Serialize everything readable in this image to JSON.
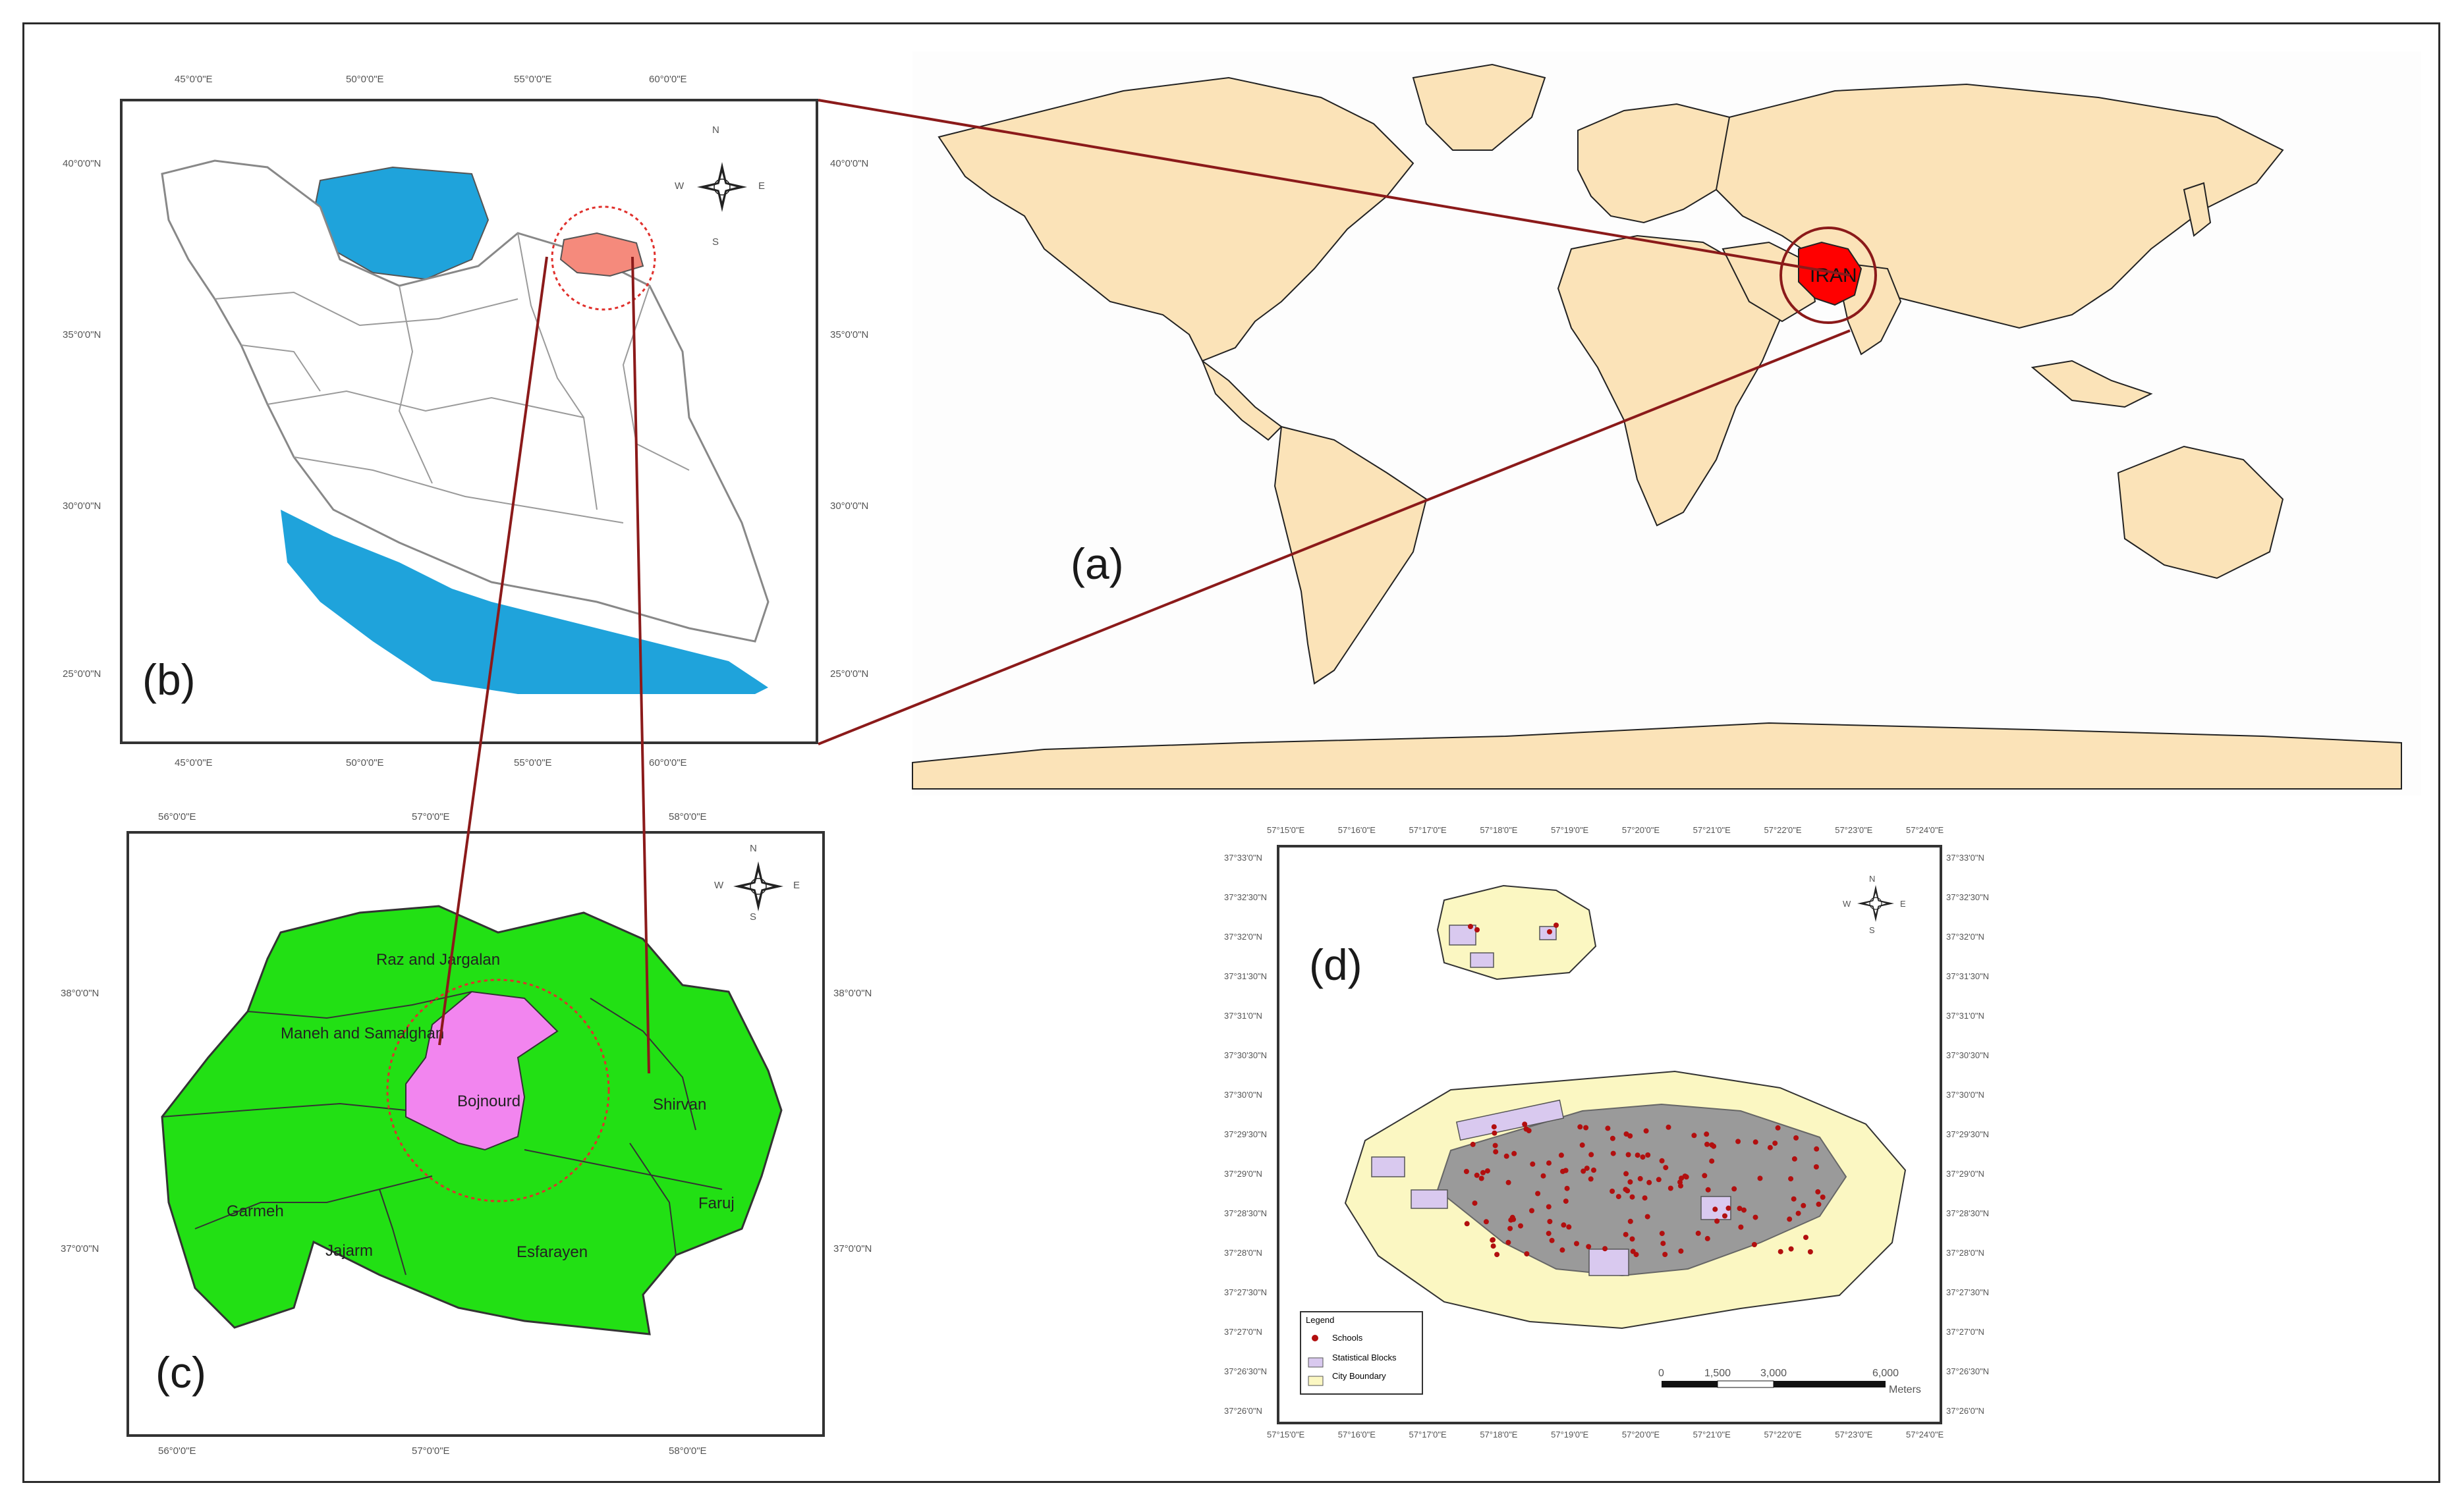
{
  "panels": {
    "a": {
      "label": "(a)",
      "country_label": "IRAN"
    },
    "b": {
      "label": "(b)",
      "x_ticks": [
        "45°0'0\"E",
        "50°0'0\"E",
        "55°0'0\"E",
        "60°0'0\"E"
      ],
      "y_ticks": [
        "40°0'0\"N",
        "35°0'0\"N",
        "30°0'0\"N",
        "25°0'0\"N"
      ]
    },
    "c": {
      "label": "(c)",
      "x_ticks": [
        "56°0'0\"E",
        "57°0'0\"E",
        "58°0'0\"E"
      ],
      "y_ticks": [
        "38°0'0\"N",
        "37°0'0\"N"
      ],
      "places": {
        "raz": "Raz and Jargalan",
        "maneh": "Maneh and Samalghan",
        "bojnourd": "Bojnourd",
        "shirvan": "Shirvan",
        "garmeh": "Garmeh",
        "jajarm": "Jajarm",
        "esfarayen": "Esfarayen",
        "faruj": "Faruj"
      }
    },
    "d": {
      "label": "(d)",
      "x_ticks": [
        "57°15'0\"E",
        "57°16'0\"E",
        "57°17'0\"E",
        "57°18'0\"E",
        "57°19'0\"E",
        "57°20'0\"E",
        "57°21'0\"E",
        "57°22'0\"E",
        "57°23'0\"E",
        "57°24'0\"E"
      ],
      "y_ticks": [
        "37°33'0\"N",
        "37°32'30\"N",
        "37°32'0\"N",
        "37°31'30\"N",
        "37°31'0\"N",
        "37°30'30\"N",
        "37°30'0\"N",
        "37°29'30\"N",
        "37°29'0\"N",
        "37°28'30\"N",
        "37°28'0\"N",
        "37°27'30\"N",
        "37°27'0\"N",
        "37°26'30\"N",
        "37°26'0\"N"
      ],
      "legend": {
        "title": "Legend",
        "items": [
          "Schools",
          "Statistical Blocks",
          "City Boundary"
        ]
      },
      "scale": {
        "ticks": [
          "0",
          "1,500",
          "3,000",
          "6,000"
        ],
        "unit": "Meters"
      }
    }
  },
  "compass": {
    "n": "N",
    "s": "S",
    "e": "E",
    "w": "W"
  },
  "colors": {
    "land": "#fbe3b8",
    "sea": "#ffffff",
    "iran_red": "#ff0000",
    "water_blue": "#1fa3db",
    "province_salmon": "#f58a7c",
    "county_green": "#22e014",
    "bojnourd_pink": "#f285ef",
    "city_boundary": "#fbf7c2",
    "stat_blocks": "#d9c9ef",
    "school_dot": "#b20f0f",
    "connector": "#8b1a1a"
  }
}
